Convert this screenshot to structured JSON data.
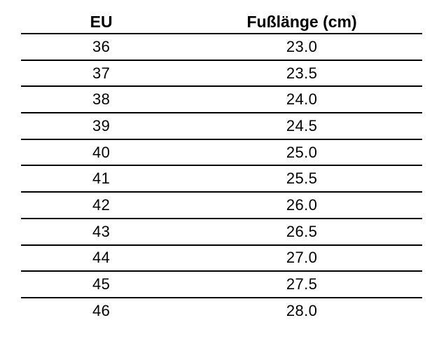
{
  "table": {
    "headers": [
      "EU",
      "Fußlänge (cm)"
    ],
    "rows": [
      [
        "36",
        "23.0"
      ],
      [
        "37",
        "23.5"
      ],
      [
        "38",
        "24.0"
      ],
      [
        "39",
        "24.5"
      ],
      [
        "40",
        "25.0"
      ],
      [
        "41",
        "25.5"
      ],
      [
        "42",
        "26.0"
      ],
      [
        "43",
        "26.5"
      ],
      [
        "44",
        "27.0"
      ],
      [
        "45",
        "27.5"
      ],
      [
        "46",
        "28.0"
      ]
    ]
  },
  "colors": {
    "background": "#ffffff",
    "text": "#000000",
    "rule": "#000000"
  }
}
